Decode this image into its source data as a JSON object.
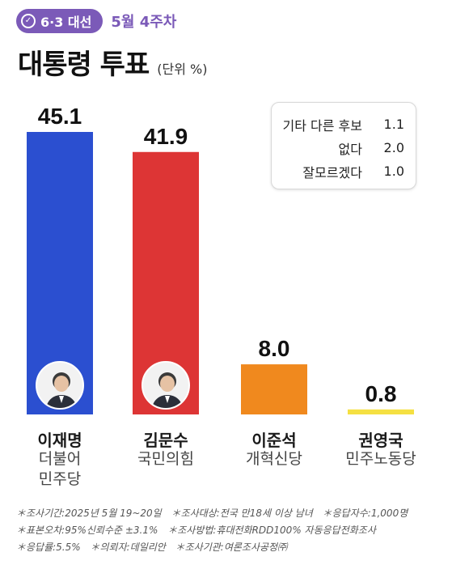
{
  "header": {
    "badge_label": "6·3 대선",
    "week_label": "5월 4주차",
    "accent_color": "#7b5ab8"
  },
  "title": "대통령 투표",
  "unit": "(단위 %)",
  "legend": [
    {
      "label": "기타 다른 후보",
      "value": "1.1"
    },
    {
      "label": "없다",
      "value": "2.0"
    },
    {
      "label": "잘모르겠다",
      "value": "1.0"
    }
  ],
  "chart_data": {
    "type": "bar",
    "title": "대통령 투표",
    "unit": "%",
    "categories": [
      "이재명",
      "김문수",
      "이준석",
      "권영국"
    ],
    "values": [
      45.1,
      41.9,
      8.0,
      0.8
    ],
    "value_labels": [
      "45.1",
      "41.9",
      "8.0",
      "0.8"
    ],
    "parties": [
      [
        "더불어",
        "민주당"
      ],
      [
        "국민의힘"
      ],
      [
        "개혁신당"
      ],
      [
        "민주노동당"
      ]
    ],
    "colors": [
      "#2b4fd0",
      "#dd3535",
      "#f0891e",
      "#f5e042"
    ],
    "ylim": [
      0,
      45.1
    ],
    "grid": false
  },
  "footnotes": [
    [
      "＊조사기간:2025년 5월 19~20일",
      "＊조사대상:전국 만18세 이상 남녀",
      "＊응답자수:1,000명"
    ],
    [
      "＊표본오차:95%신뢰수준 ±3.1%",
      "＊조사방법:휴대전화RDD100% 자동응답전화조사"
    ],
    [
      "＊응답률:5.5%",
      "＊의뢰자:데일리안",
      "＊조사기관:여론조사공정㈜"
    ]
  ]
}
